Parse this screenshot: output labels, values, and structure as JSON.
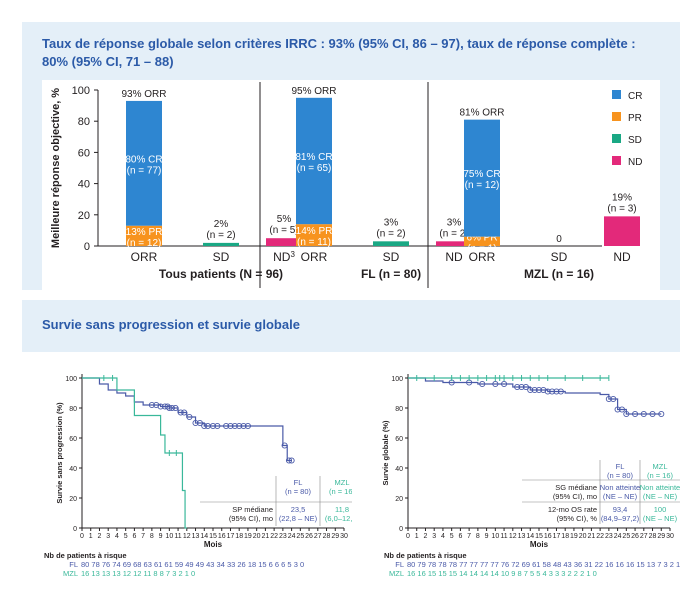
{
  "top_title": "Taux de réponse globale selon critères IRRC : 93% (95% CI, 86 – 97), taux de réponse complète :  80% (95% CI, 71 – 88)",
  "bottom_title": "Survie sans progression et survie globale",
  "colors": {
    "CR": "#2e86d1",
    "PR": "#f7931e",
    "SD": "#1aa884",
    "ND": "#e3297a",
    "FL": "#4a5aa8",
    "MZL": "#3ab89a",
    "text": "#231f20",
    "heading": "#2b5aa8"
  },
  "chart_data": [
    {
      "type": "bar",
      "ylabel": "Meilleure réponse objective, %",
      "ylim": [
        0,
        100
      ],
      "yticks": [
        0,
        20,
        40,
        60,
        80,
        100
      ],
      "legend": [
        "CR",
        "PR",
        "SD",
        "ND"
      ],
      "legend_position": "right",
      "groups": [
        {
          "name": "Tous patients (N = 96)",
          "name_sup": "",
          "bars": [
            {
              "label": "ORR",
              "label_sup": "",
              "top_label": "93% ORR",
              "segments": [
                {
                  "cat": "PR",
                  "value": 13,
                  "text1": "13% PR",
                  "text2": "(n = 12)"
                },
                {
                  "cat": "CR",
                  "value": 80,
                  "text1": "80% CR",
                  "text2": "(n = 77)"
                }
              ]
            },
            {
              "label": "SD",
              "label_sup": "",
              "top_label": "2%",
              "top_label2": "(n = 2)",
              "segments": [
                {
                  "cat": "SD",
                  "value": 2
                }
              ]
            },
            {
              "label": "ND",
              "label_sup": "3",
              "top_label": "5%",
              "top_label2": "(n = 5)",
              "segments": [
                {
                  "cat": "ND",
                  "value": 5
                }
              ]
            }
          ]
        },
        {
          "name": "FL (n = 80)",
          "name_sup": "",
          "bars": [
            {
              "label": "ORR",
              "label_sup": "",
              "top_label": "95% ORR",
              "segments": [
                {
                  "cat": "PR",
                  "value": 14,
                  "text1": "14% PR",
                  "text2": "(n = 11)"
                },
                {
                  "cat": "CR",
                  "value": 81,
                  "text1": "81% CR",
                  "text2": "(n = 65)"
                }
              ]
            },
            {
              "label": "SD",
              "label_sup": "",
              "top_label": "3%",
              "top_label2": "(n = 2)",
              "segments": [
                {
                  "cat": "SD",
                  "value": 3
                }
              ]
            },
            {
              "label": "ND",
              "label_sup": "",
              "top_label": "3%",
              "top_label2": "(n = 2)",
              "segments": [
                {
                  "cat": "ND",
                  "value": 3
                }
              ]
            }
          ]
        },
        {
          "name": "MZL (n = 16)",
          "name_sup": "",
          "bars": [
            {
              "label": "ORR",
              "label_sup": "",
              "top_label": "81% ORR",
              "segments": [
                {
                  "cat": "PR",
                  "value": 6,
                  "text1": "6% PR",
                  "text2": "(n = 1)"
                },
                {
                  "cat": "CR",
                  "value": 75,
                  "text1": "75% CR",
                  "text2": "(n = 12)"
                }
              ]
            },
            {
              "label": "SD",
              "label_sup": "",
              "top_label": "0",
              "segments": []
            },
            {
              "label": "ND",
              "label_sup": "",
              "top_label": "19%",
              "top_label2": "(n = 3)",
              "segments": [
                {
                  "cat": "ND",
                  "value": 19
                }
              ]
            }
          ]
        }
      ]
    },
    {
      "type": "line",
      "ylabel": "Survie sans progression (%)",
      "xlabel": "Mois",
      "ylim": [
        0,
        100
      ],
      "xlim": [
        0,
        30
      ],
      "yticks": [
        0,
        20,
        40,
        60,
        80,
        100
      ],
      "xticks": [
        0,
        1,
        2,
        3,
        4,
        5,
        6,
        7,
        8,
        9,
        10,
        11,
        12,
        13,
        14,
        15,
        16,
        17,
        18,
        19,
        20,
        21,
        22,
        23,
        24,
        25,
        26,
        27,
        28,
        29,
        30
      ],
      "series": [
        {
          "name": "FL",
          "step": true,
          "x": [
            0,
            1,
            2,
            3,
            4,
            5,
            6,
            7,
            8,
            9,
            10,
            11,
            12,
            13,
            14,
            15,
            16,
            17,
            18,
            19,
            20,
            21,
            22,
            23,
            23.5,
            24
          ],
          "y": [
            100,
            100,
            96,
            92,
            90,
            88,
            84,
            82,
            82,
            81,
            80,
            77,
            74,
            70,
            68,
            68,
            68,
            68,
            68,
            68,
            68,
            68,
            68,
            55,
            45,
            45
          ],
          "censored_x": [
            8,
            8.5,
            9,
            9.5,
            9.8,
            10,
            10.3,
            10.7,
            11.3,
            11.7,
            12.3,
            13,
            13.5,
            14,
            14.4,
            15,
            15.5,
            16.5,
            17,
            17.5,
            18,
            18.5,
            19,
            23.2,
            23.7,
            24
          ]
        },
        {
          "name": "MZL",
          "step": true,
          "x": [
            0,
            3,
            4,
            6,
            8,
            9,
            9.5,
            11,
            11.5,
            11.8,
            12
          ],
          "y": [
            100,
            100,
            92,
            75,
            75,
            62,
            50,
            50,
            25,
            0,
            0
          ],
          "censored_x": [
            2.5,
            3.5,
            10,
            10.8
          ]
        }
      ],
      "table": {
        "headers": [
          "FL\n(n = 80)",
          "MZL\n(n = 16)"
        ],
        "rows": [
          {
            "label": "SP médiane\n(95% CI), mo",
            "values": [
              "23,5\n(22,8 – NE)",
              "11,8\n(6,0–12,0)"
            ]
          }
        ]
      },
      "risk_title": "Nb de patients à risque",
      "risk": [
        {
          "name": "FL",
          "values": "80 78 76 74 69 68 63 61 61 59 49 49 43 34 33 26 18 15 6 6 6 5 3 0"
        },
        {
          "name": "MZL",
          "values": "16 13 13 13 12 12 11 8 8 7 3 2 1 0"
        }
      ]
    },
    {
      "type": "line",
      "ylabel": "Survie globale (%)",
      "xlabel": "Mois",
      "ylim": [
        0,
        100
      ],
      "xlim": [
        0,
        30
      ],
      "yticks": [
        0,
        20,
        40,
        60,
        80,
        100
      ],
      "xticks": [
        0,
        1,
        2,
        3,
        4,
        5,
        6,
        7,
        8,
        9,
        10,
        11,
        12,
        13,
        14,
        15,
        16,
        17,
        18,
        19,
        20,
        21,
        22,
        23,
        24,
        25,
        26,
        27,
        28,
        29,
        30
      ],
      "series": [
        {
          "name": "FL",
          "step": true,
          "x": [
            0,
            2,
            4,
            6,
            8,
            10,
            12,
            14,
            16,
            18,
            20,
            22,
            23,
            24,
            25,
            28,
            29
          ],
          "y": [
            100,
            98,
            97,
            97,
            96,
            96,
            94,
            92,
            91,
            90,
            90,
            89,
            86,
            79,
            76,
            76,
            76
          ],
          "censored_x": [
            5,
            7,
            8.5,
            10,
            11,
            12.5,
            13,
            13.5,
            14,
            14.5,
            15,
            15.5,
            16,
            16.5,
            17,
            17.5,
            23,
            23.5,
            24,
            24.5,
            25,
            26,
            27,
            28,
            29
          ]
        },
        {
          "name": "MZL",
          "step": true,
          "x": [
            0,
            23
          ],
          "y": [
            100,
            100
          ],
          "censored_x": [
            1,
            3,
            5,
            6,
            7,
            8,
            9,
            10,
            10.5,
            11,
            12,
            13,
            14,
            15,
            16,
            18,
            20,
            22,
            23
          ]
        }
      ],
      "table": {
        "headers": [
          "FL\n(n = 80)",
          "MZL\n(n = 16)"
        ],
        "rows": [
          {
            "label": "SG médiane\n(95% CI), mo",
            "values": [
              "Non atteinte\n(NE – NE)",
              "Non atteinte\n(NE – NE)"
            ]
          },
          {
            "label": "12-mo OS rate\n(95% CI), %",
            "values": [
              "93,4\n(84,9–97,2)",
              "100\n(NE – NE)"
            ]
          }
        ]
      },
      "risk_title": "Nb de patients à risque",
      "risk": [
        {
          "name": "FL",
          "values": "80 79 78 78 78 77 77 77 77 76 72 69 61 58 48 43 36 31 22 16 16 16 15 13 7 3 2 1 1 0"
        },
        {
          "name": "MZL",
          "values": "16 16 15 15 15 14 14 14 14 10 9 8 7 5 5 4 3 3 3 2 2 2 1 0"
        }
      ]
    }
  ]
}
